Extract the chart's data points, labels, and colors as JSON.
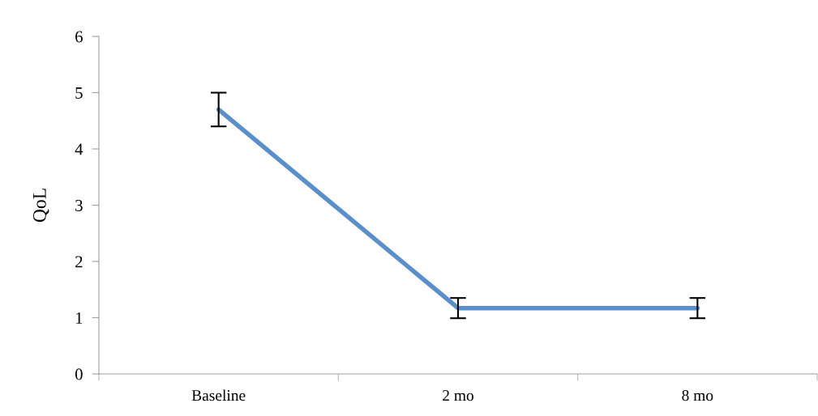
{
  "chart_data": {
    "type": "line",
    "ylabel": "QoL",
    "categories": [
      "Baseline",
      "2 mo",
      "8 mo"
    ],
    "series": [
      {
        "color": "#5b8fc9",
        "values": [
          4.7,
          1.17,
          1.17
        ],
        "errors": [
          0.3,
          0.18,
          0.18
        ]
      }
    ],
    "ylim": [
      0,
      6
    ],
    "yticks": [
      0,
      1,
      2,
      3,
      4,
      5,
      6
    ],
    "grid": false,
    "legend": false,
    "marker": "none",
    "line_style": "solid"
  }
}
